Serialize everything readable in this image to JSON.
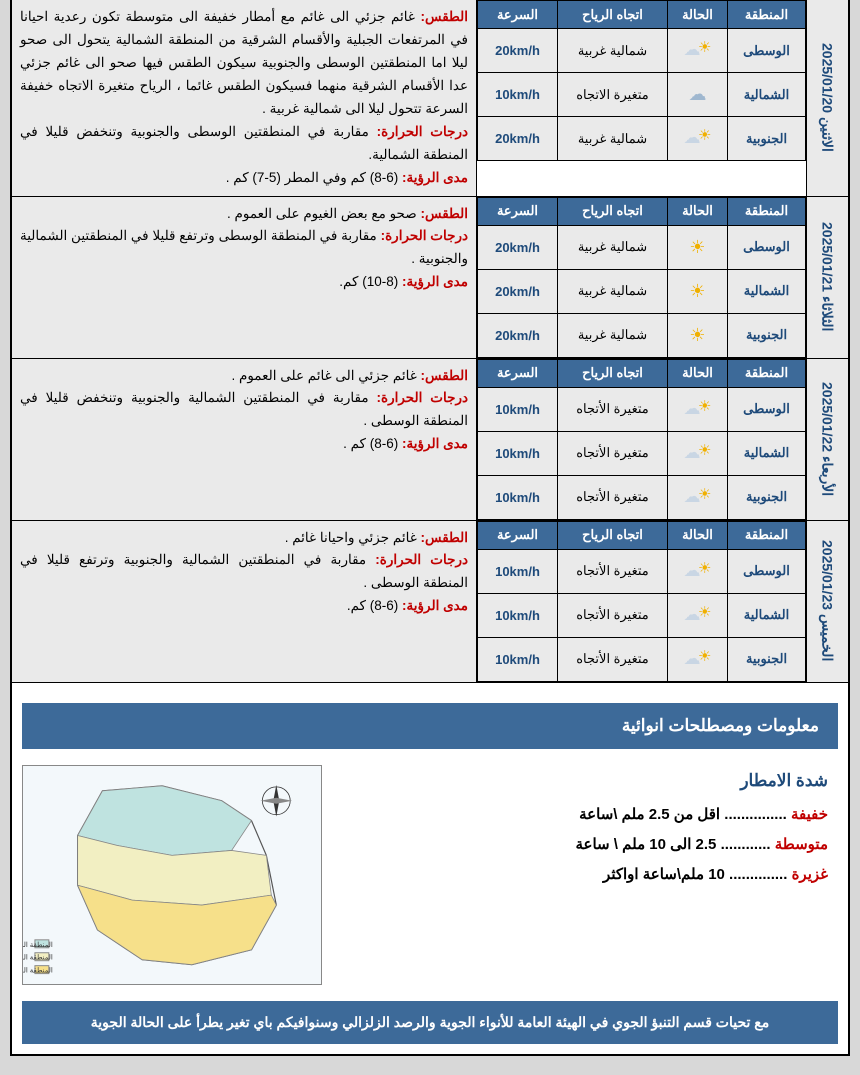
{
  "headers": {
    "region": "المنطقة",
    "state": "الحالة",
    "wind": "اتجاه الرياح",
    "speed": "السرعة"
  },
  "days": [
    {
      "date_label": "الاثنين 2025/01/20",
      "rows": [
        {
          "region": "الوسطى",
          "icon": "partly",
          "wind": "شمالية غربية",
          "speed": "20km/h"
        },
        {
          "region": "الشمالية",
          "icon": "cloud",
          "wind": "متغيرة الاتجاه",
          "speed": "10km/h"
        },
        {
          "region": "الجنوبية",
          "icon": "partly",
          "wind": "شمالية غربية",
          "speed": "20km/h"
        }
      ],
      "w": "غائم جزئي الى غائم مع أمطار خفيفة الى متوسطة تكون رعدية احيانا في المرتفعات الجبلية والأقسام الشرقية من المنطقة الشمالية يتحول الى صحو ليلا اما المنطقتين الوسطى والجنوبية سيكون الطقس فيها صحو الى غائم جزئي عدا الأقسام الشرقية منهما فسيكون الطقس غائما ، الرياح متغيرة الاتجاه خفيفة السرعة تتحول ليلا الى شمالية غربية .",
      "t": "مقاربة في المنطقتين الوسطى والجنوبية وتنخفض قليلا في المنطقة الشمالية.",
      "v": "(6-8) كم وفي المطر (5-7) كم ."
    },
    {
      "date_label": "الثلاثاء 2025/01/21",
      "rows": [
        {
          "region": "الوسطى",
          "icon": "sun",
          "wind": "شمالية غربية",
          "speed": "20km/h"
        },
        {
          "region": "الشمالية",
          "icon": "sun",
          "wind": "شمالية غربية",
          "speed": "20km/h"
        },
        {
          "region": "الجنوبية",
          "icon": "sun",
          "wind": "شمالية غربية",
          "speed": "20km/h"
        }
      ],
      "w": "صحو مع بعض الغيوم على العموم .",
      "t": "مقاربة في المنطقة الوسطى وترتفع قليلا في المنطقتين الشمالية والجنوبية .",
      "v": "(8-10) كم."
    },
    {
      "date_label": "الأربعاء 2025/01/22",
      "rows": [
        {
          "region": "الوسطى",
          "icon": "partly",
          "wind": "متغيرة الأتجاه",
          "speed": "10km/h"
        },
        {
          "region": "الشمالية",
          "icon": "partly",
          "wind": "متغيرة الأتجاه",
          "speed": "10km/h"
        },
        {
          "region": "الجنوبية",
          "icon": "partly",
          "wind": "متغيرة الأتجاه",
          "speed": "10km/h"
        }
      ],
      "w": "غائم جزئي الى غائم على العموم .",
      "t": "مقاربة في المنطقتين الشمالية والجنوبية وتنخفض قليلا في المنطقة الوسطى .",
      "v": "(6-8) كم ."
    },
    {
      "date_label": "الخميس 2025/01/23",
      "rows": [
        {
          "region": "الوسطى",
          "icon": "partly",
          "wind": "متغيرة الأتجاه",
          "speed": "10km/h"
        },
        {
          "region": "الشمالية",
          "icon": "partly",
          "wind": "متغيرة الأتجاه",
          "speed": "10km/h"
        },
        {
          "region": "الجنوبية",
          "icon": "partly",
          "wind": "متغيرة الأتجاه",
          "speed": "10km/h"
        }
      ],
      "w": "غائم جزئي واحيانا غائم .",
      "t": "مقاربة في المنطقتين الشمالية والجنوبية وترتفع قليلا في المنطقة الوسطى .",
      "v": "(6-8) كم."
    }
  ],
  "labels": {
    "weather": "الطقس:",
    "temp": "درجات الحرارة:",
    "vis": "مدى الرؤية:"
  },
  "terms_title": "معلومات ومصطلحات انوائية",
  "rain": {
    "title": "شدة الامطار",
    "r1k": "خفيفة",
    "r1v": "اقل من 2.5  ملم \\ساعة",
    "r2k": "متوسطة",
    "r2v": "2.5 الى 10 ملم \\ ساعة",
    "r3k": "غزيرة",
    "r3v": "10 ملم\\ساعة اواكثر"
  },
  "footer": "مع تحيات قسم التنبؤ الجوي في الهيئة العامة للأنواء الجوية والرصد الزلزالي وسنوافيكم  باي تغير يطرأ على الحالة الجوية",
  "colors": {
    "header_bg": "#3d6a99",
    "header_fg": "#ffffff",
    "cell_bg": "#EAEAEA",
    "accent": "#1e4a7a",
    "label_red": "#c00000",
    "page_bg": "#ffffff",
    "outer_bg": "#d8d8d8"
  }
}
